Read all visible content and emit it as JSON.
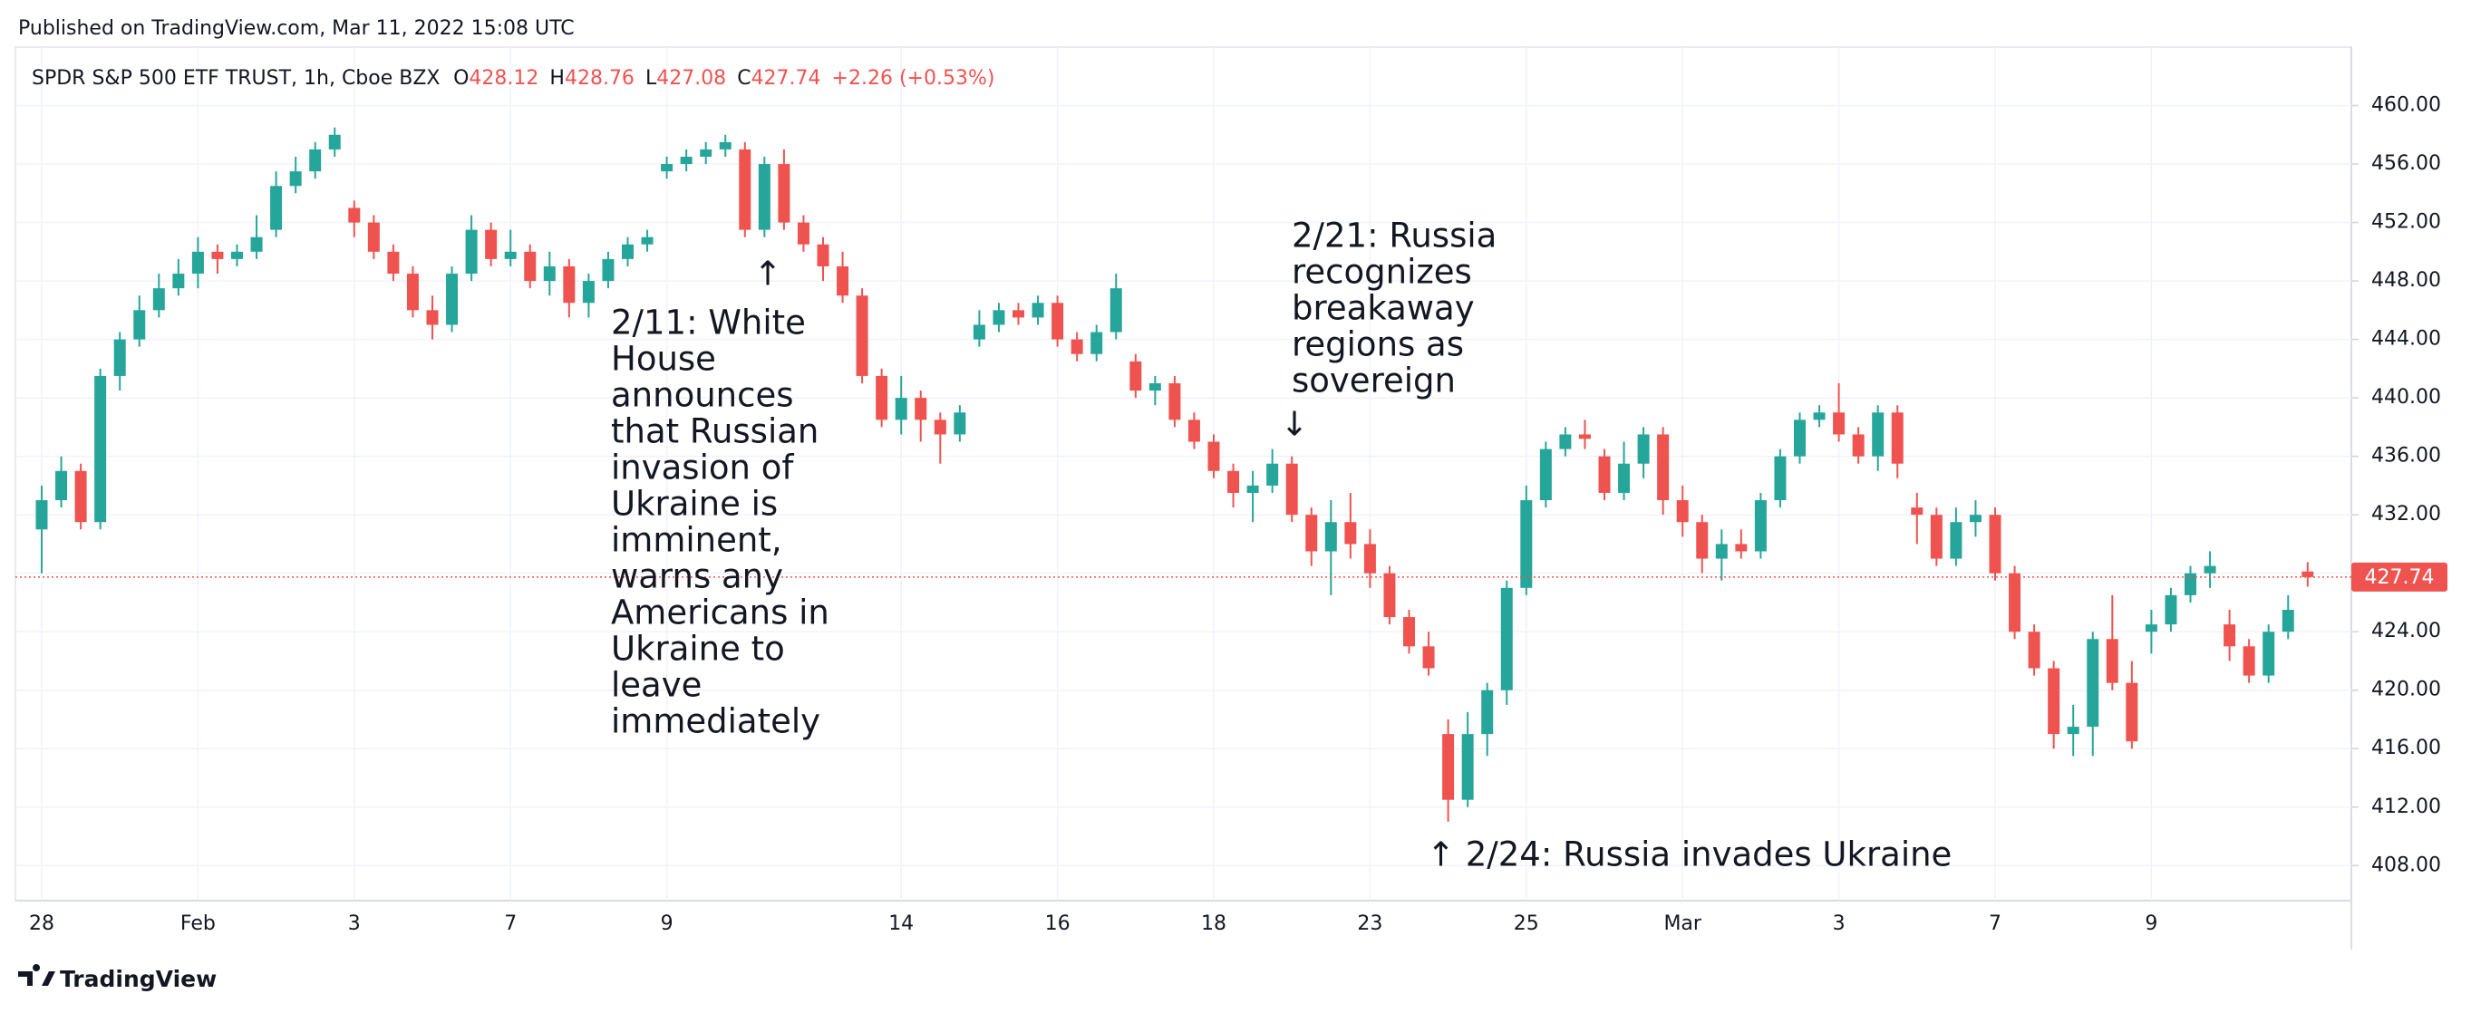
{
  "header": "Published on TradingView.com, Mar 11, 2022 15:08 UTC",
  "footer": "TradingView",
  "chart_data": {
    "type": "candlestick",
    "title": "SPDR S&P 500 ETF TRUST, 1h, Cboe BZX",
    "ohlc_labels": [
      "O",
      "H",
      "L",
      "C"
    ],
    "change_label": "+2.26 (+0.53%)",
    "up_color": "#26a69a",
    "down_color": "#ef5350",
    "grid": true,
    "categories": [
      "28",
      null,
      null,
      null,
      null,
      null,
      null,
      null,
      "Feb",
      null,
      null,
      null,
      null,
      null,
      null,
      null,
      "3",
      null,
      null,
      null,
      null,
      null,
      null,
      null,
      "7",
      null,
      null,
      null,
      null,
      null,
      null,
      null,
      "9",
      null,
      null,
      null,
      null,
      null,
      null,
      null,
      null,
      null,
      null,
      null,
      "14",
      null,
      null,
      null,
      null,
      null,
      null,
      null,
      "16",
      null,
      null,
      null,
      null,
      null,
      null,
      null,
      "18",
      null,
      null,
      null,
      null,
      null,
      null,
      null,
      "23",
      null,
      null,
      null,
      null,
      null,
      null,
      null,
      "25",
      null,
      null,
      null,
      null,
      null,
      null,
      null,
      "Mar",
      null,
      null,
      null,
      null,
      null,
      null,
      null,
      "3",
      null,
      null,
      null,
      null,
      null,
      null,
      null,
      "7",
      null,
      null,
      null,
      null,
      null,
      null,
      null,
      "9",
      null,
      null,
      null,
      null,
      null,
      null,
      null,
      null
    ],
    "open": [
      431,
      433,
      435,
      431.5,
      441.5,
      444,
      446,
      447.5,
      448.5,
      450,
      449.5,
      450,
      451.5,
      454.5,
      455.5,
      457,
      453,
      452,
      450,
      448.5,
      446,
      445,
      448.5,
      451.5,
      449.5,
      450,
      448,
      449,
      446.5,
      448,
      449.5,
      450.5,
      455.5,
      456,
      456.5,
      457,
      457,
      451.5,
      456,
      452,
      450.5,
      449,
      447,
      441.5,
      438.5,
      440,
      438.5,
      437.5,
      444,
      445,
      446,
      445.5,
      446.5,
      444,
      443,
      444.5,
      442.5,
      440.5,
      441,
      438.5,
      437,
      435,
      433.5,
      434,
      435.5,
      432,
      429.5,
      431.5,
      430,
      428,
      425,
      423,
      417,
      412.5,
      417,
      420,
      427,
      433,
      436.5,
      437.5,
      436,
      433.5,
      435.5,
      437.5,
      433,
      431.5,
      429,
      430,
      429.5,
      433,
      436,
      438.5,
      439,
      437.5,
      436,
      439,
      432.5,
      432,
      429,
      431.5,
      432,
      428,
      424,
      421.5,
      417,
      417.5,
      423.5,
      420.5,
      424,
      424.5,
      426.5,
      428,
      424.5,
      423,
      421,
      424,
      428.12
    ],
    "high": [
      434,
      436,
      435.5,
      442,
      444.5,
      447,
      448.5,
      449.5,
      451,
      450.5,
      450.5,
      452.5,
      455.5,
      456.5,
      457.5,
      458.5,
      453.5,
      452.5,
      450.5,
      449,
      447,
      449,
      452.5,
      452,
      451.5,
      450.5,
      450,
      449.5,
      448.5,
      450,
      451,
      451.5,
      456.5,
      457,
      457.5,
      458,
      457.5,
      456.5,
      457,
      452.5,
      451,
      450,
      447.5,
      442,
      441.5,
      440.5,
      439,
      439.5,
      446,
      446.5,
      446.5,
      447,
      447,
      444.5,
      445,
      448.5,
      443,
      441.5,
      441.5,
      439,
      437.5,
      435.5,
      435,
      436.5,
      436,
      432.5,
      433,
      433.5,
      431,
      428.5,
      425.5,
      424,
      418,
      418.5,
      420.5,
      427.5,
      434,
      437,
      438,
      438.5,
      436.5,
      437,
      438,
      438,
      434,
      432,
      431,
      431,
      433.5,
      436.5,
      439,
      439.5,
      441,
      438,
      439.5,
      439.5,
      433.5,
      432.5,
      432.5,
      433,
      432.5,
      428.5,
      424.5,
      422,
      419,
      424,
      426.5,
      422,
      425.5,
      427,
      428.5,
      429.5,
      425.5,
      423.5,
      424.5,
      426.5,
      428.76
    ],
    "low": [
      428,
      432.5,
      431,
      431,
      440.5,
      443.5,
      445.5,
      447,
      447.5,
      448.5,
      449,
      449.5,
      451,
      454,
      455,
      456.5,
      451,
      449.5,
      448,
      445.5,
      444,
      444.5,
      448,
      449,
      449,
      447.5,
      447,
      445.5,
      445.5,
      447.5,
      449,
      450,
      455,
      455.5,
      456,
      456.5,
      451,
      451,
      451.5,
      450,
      448,
      446.5,
      441,
      438,
      437.5,
      437,
      435.5,
      437,
      443.5,
      444.5,
      445,
      445,
      443.5,
      442.5,
      442.5,
      444,
      440,
      439.5,
      438,
      436.5,
      434.5,
      432.5,
      431.5,
      433.5,
      431.5,
      428.5,
      426.5,
      429,
      427,
      424.5,
      422.5,
      421,
      411,
      412,
      415.5,
      419,
      426.5,
      432.5,
      436,
      436.5,
      433,
      433,
      434.5,
      432,
      430.5,
      428,
      427.5,
      429,
      429,
      432.5,
      435.5,
      438,
      437,
      435.5,
      435,
      434.5,
      430,
      428.5,
      428.5,
      430.5,
      427.5,
      423.5,
      421,
      416,
      415.5,
      415.5,
      420,
      416,
      422.5,
      424,
      426,
      427,
      422,
      420.5,
      420.5,
      423.5,
      427.08
    ],
    "close": [
      433,
      435,
      431.5,
      441.5,
      444,
      446,
      447.5,
      448.5,
      450,
      449.5,
      450,
      451,
      454.5,
      455.5,
      457,
      458,
      452,
      450,
      448.5,
      446,
      445,
      448.5,
      451.5,
      449.5,
      450,
      448,
      449,
      446.5,
      448,
      449.5,
      450.5,
      451,
      456,
      456.5,
      457,
      457.5,
      451.5,
      456,
      452,
      450.5,
      449,
      447,
      441.5,
      438.5,
      440,
      438.5,
      437.5,
      439,
      445,
      446,
      445.5,
      446.5,
      444,
      443,
      444.5,
      447.5,
      440.5,
      441,
      438.5,
      437,
      435,
      433.5,
      434,
      435.5,
      432,
      429.5,
      431.5,
      430,
      428,
      425,
      423,
      421.5,
      412.5,
      417,
      420,
      427,
      433,
      436.5,
      437.5,
      437.2,
      433.5,
      435.5,
      437.5,
      433,
      431.5,
      429,
      430,
      429.5,
      433,
      436,
      438.5,
      439,
      437.5,
      436,
      439,
      435.5,
      432,
      429,
      431.5,
      432,
      428,
      424,
      421.5,
      417,
      417.5,
      423.5,
      420.5,
      416.5,
      424.5,
      426.5,
      428,
      428.5,
      423,
      421,
      424,
      425.5,
      427.74
    ],
    "ylim": [
      405.6,
      464
    ],
    "yticks": [
      {
        "value": 408,
        "label": "408.00"
      },
      {
        "value": 412,
        "label": "412.00"
      },
      {
        "value": 416,
        "label": "416.00"
      },
      {
        "value": 420,
        "label": "420.00"
      },
      {
        "value": 424,
        "label": "424.00"
      },
      {
        "value": 428,
        "label": "428.00"
      },
      {
        "value": 432,
        "label": "432.00"
      },
      {
        "value": 436,
        "label": "436.00"
      },
      {
        "value": 440,
        "label": "440.00"
      },
      {
        "value": 444,
        "label": "444.00"
      },
      {
        "value": 448,
        "label": "448.00"
      },
      {
        "value": 452,
        "label": "452.00"
      },
      {
        "value": 456,
        "label": "456.00"
      },
      {
        "value": 460,
        "label": "460.00"
      }
    ],
    "annotations": [
      {
        "arrow": "↑",
        "lines": [
          "2/11: White",
          "House",
          "announces",
          "that Russian",
          "invasion of",
          "Ukraine is",
          "imminent,",
          "warns any",
          "Americans in",
          "Ukraine to",
          "leave",
          "immediately"
        ]
      },
      {
        "lines": [
          "2/21: Russia",
          "recognizes",
          "breakaway",
          "regions as",
          "sovereign"
        ],
        "arrow": "↓"
      },
      {
        "text": "↑ 2/24: Russia invades Ukraine"
      }
    ]
  }
}
